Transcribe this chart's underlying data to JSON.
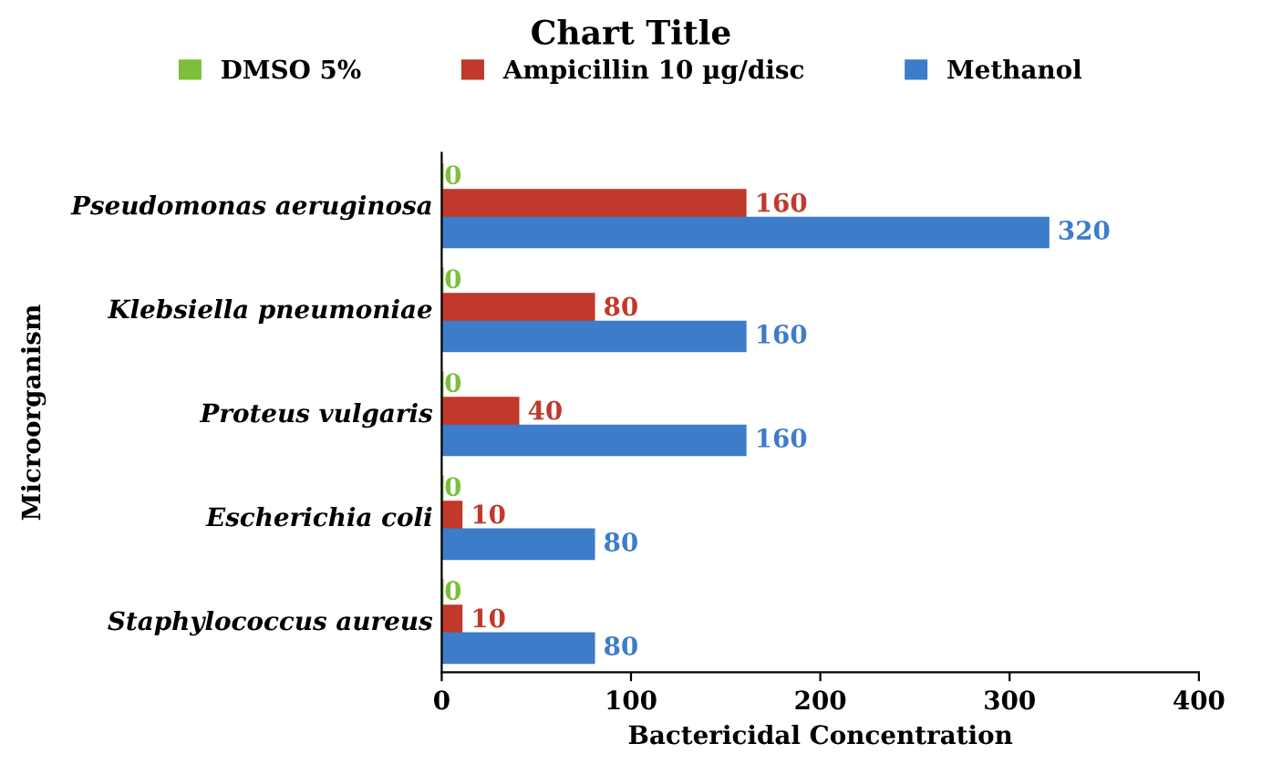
{
  "chart_data": {
    "type": "bar",
    "orientation": "horizontal",
    "title": "Chart Title",
    "xlabel": "Bactericidal Concentration",
    "ylabel": "Microorganism",
    "categories": [
      "Pseudomonas aeruginosa",
      "Klebsiella pneumoniae",
      "Proteus vulgaris",
      "Escherichia coli",
      "Staphylococcus aureus"
    ],
    "series": [
      {
        "name": "DMSO 5%",
        "color": "#7cbf3a",
        "values": [
          0,
          0,
          0,
          0,
          0
        ]
      },
      {
        "name": "Ampicillin 10 µg/disc",
        "color": "#c0392b",
        "values": [
          160,
          80,
          40,
          10,
          10
        ]
      },
      {
        "name": "Methanol",
        "color": "#3d7cc9",
        "values": [
          320,
          160,
          160,
          80,
          80
        ]
      }
    ],
    "xlim": [
      0,
      400
    ],
    "xticks": [
      0,
      100,
      200,
      300,
      400
    ],
    "grid": false,
    "legend": "top",
    "data_labels": true
  }
}
